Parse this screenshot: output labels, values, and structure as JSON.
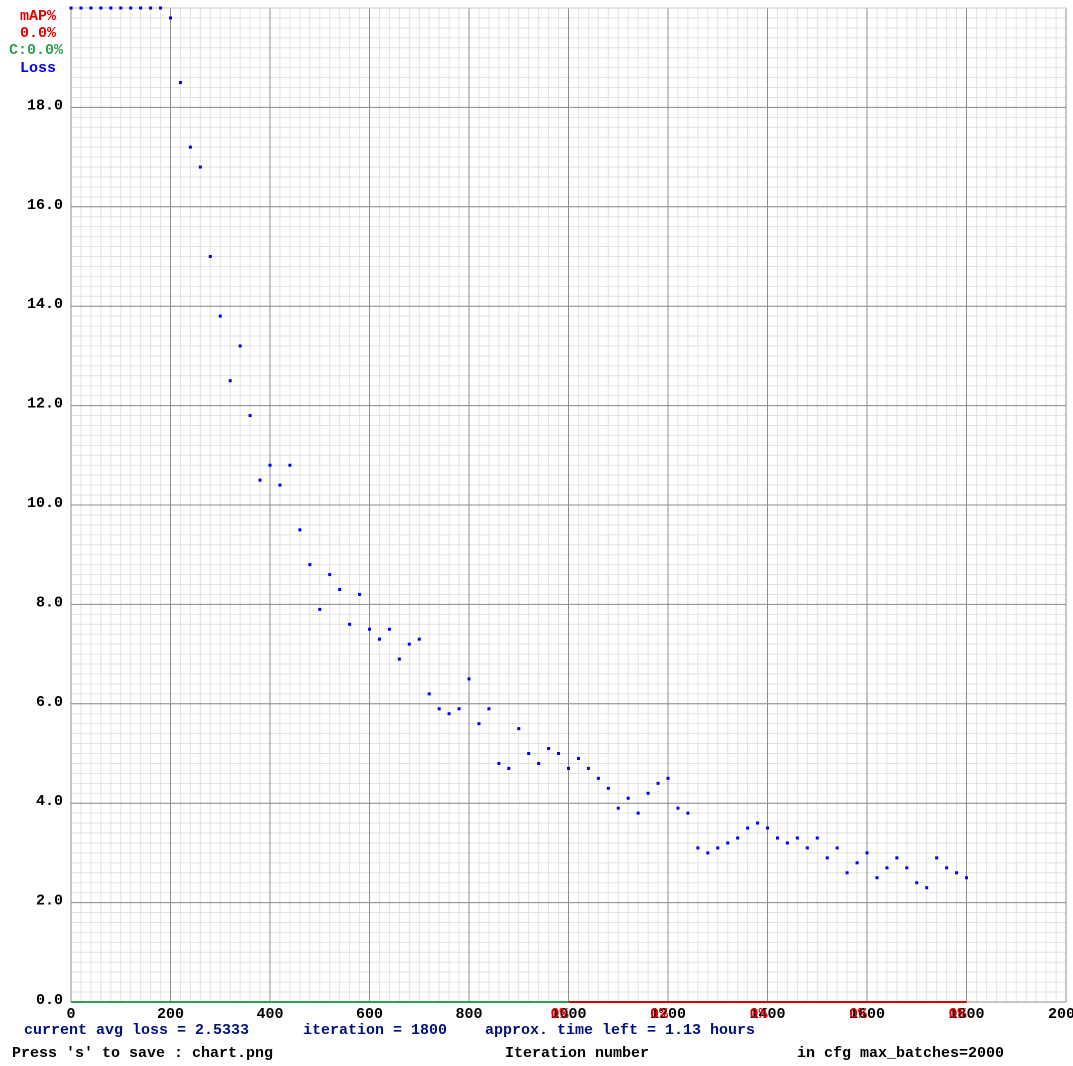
{
  "chart_data": {
    "type": "scatter",
    "x_label": "Iteration number",
    "map_status": "0.0%",
    "conf_status": "C:0.0%",
    "status_loss": "current avg loss = 2.5333",
    "status_iteration": "iteration = 1800",
    "status_time": "approx. time left = 1.13 hours",
    "save_hint": "Press 's' to save : chart.png",
    "max_batches_note": "in cfg max_batches=2000",
    "xlim": [
      0,
      2000
    ],
    "ylim": [
      0,
      20
    ],
    "xticks": [
      0,
      200,
      400,
      600,
      800,
      1000,
      1200,
      1400,
      1600,
      1800,
      2000
    ],
    "yticks": [
      {
        "value": 0,
        "label": "0.0"
      },
      {
        "value": 2,
        "label": "2.0"
      },
      {
        "value": 4,
        "label": "4.0"
      },
      {
        "value": 6,
        "label": "6.0"
      },
      {
        "value": 8,
        "label": "8.0"
      },
      {
        "value": 10,
        "label": "10.0"
      },
      {
        "value": 12,
        "label": "12.0"
      },
      {
        "value": 14,
        "label": "14.0"
      },
      {
        "value": 16,
        "label": "16.0"
      },
      {
        "value": 18,
        "label": "18.0"
      }
    ],
    "grid": true,
    "minor_grid": true,
    "series": [
      {
        "name": "Loss",
        "color": "#0000ff",
        "x": [
          0,
          20,
          40,
          60,
          80,
          100,
          120,
          140,
          160,
          180,
          200,
          220,
          240,
          260,
          280,
          300,
          320,
          340,
          360,
          380,
          400,
          420,
          440,
          460,
          480,
          500,
          520,
          540,
          560,
          580,
          600,
          620,
          640,
          660,
          680,
          700,
          720,
          740,
          760,
          780,
          800,
          820,
          840,
          860,
          880,
          900,
          920,
          940,
          960,
          980,
          1000,
          1020,
          1040,
          1060,
          1080,
          1100,
          1120,
          1140,
          1160,
          1180,
          1200,
          1220,
          1240,
          1260,
          1280,
          1300,
          1320,
          1340,
          1360,
          1380,
          1400,
          1420,
          1440,
          1460,
          1480,
          1500,
          1520,
          1540,
          1560,
          1580,
          1600,
          1620,
          1640,
          1660,
          1680,
          1700,
          1720,
          1740,
          1760,
          1780,
          1800
        ],
        "values": [
          20,
          20,
          20,
          20,
          20,
          20,
          20,
          20,
          20,
          20,
          19.8,
          18.5,
          17.2,
          16.8,
          15.0,
          13.8,
          12.5,
          13.2,
          11.8,
          10.5,
          10.8,
          10.4,
          10.8,
          9.5,
          8.8,
          7.9,
          8.6,
          8.3,
          7.6,
          8.2,
          7.5,
          7.3,
          7.5,
          6.9,
          7.2,
          7.3,
          6.2,
          5.9,
          5.8,
          5.9,
          6.5,
          5.6,
          5.9,
          4.8,
          4.7,
          5.5,
          5.0,
          4.8,
          5.1,
          5.0,
          4.7,
          4.9,
          4.7,
          4.5,
          4.3,
          3.9,
          4.1,
          3.8,
          4.2,
          4.4,
          4.5,
          3.9,
          3.8,
          3.1,
          3.0,
          3.1,
          3.2,
          3.3,
          3.5,
          3.6,
          3.5,
          3.3,
          3.2,
          3.3,
          3.1,
          3.3,
          2.9,
          3.1,
          2.6,
          2.8,
          3.0,
          2.5,
          2.7,
          2.9,
          2.7,
          2.4,
          2.3,
          2.9,
          2.7,
          2.6,
          2.5
        ]
      },
      {
        "name": "mAP%",
        "color": "#e00000",
        "x": [
          1000,
          1200,
          1400,
          1600,
          1800
        ],
        "values": [
          0,
          0,
          0,
          0,
          0
        ],
        "value_labels": [
          "0%",
          "0%",
          "0%",
          "0%",
          "0%"
        ]
      }
    ]
  }
}
